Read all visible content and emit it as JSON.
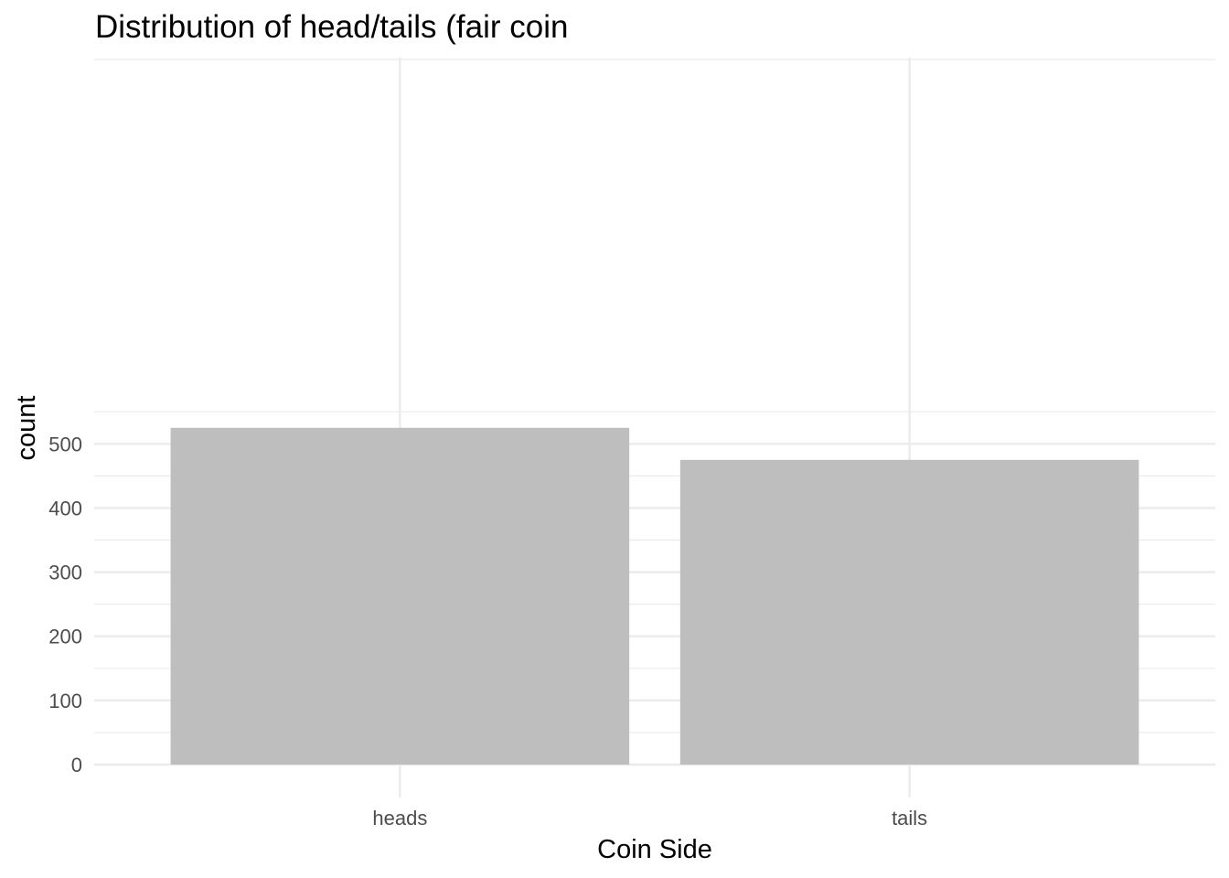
{
  "chart_data": {
    "type": "bar",
    "title": "Distribution of head/tails (fair coin",
    "xlabel": "Coin Side",
    "ylabel": "count",
    "categories": [
      "heads",
      "tails"
    ],
    "values": [
      525,
      475
    ],
    "ylim": [
      0,
      550
    ],
    "yticks": [
      0,
      100,
      200,
      300,
      400,
      500
    ],
    "ytick_labels": [
      "0",
      "100",
      "200",
      "300",
      "400",
      "500"
    ],
    "grid": true,
    "legend": "none",
    "bar_color": "#bebebe",
    "gridline_color": "#ebebeb"
  }
}
